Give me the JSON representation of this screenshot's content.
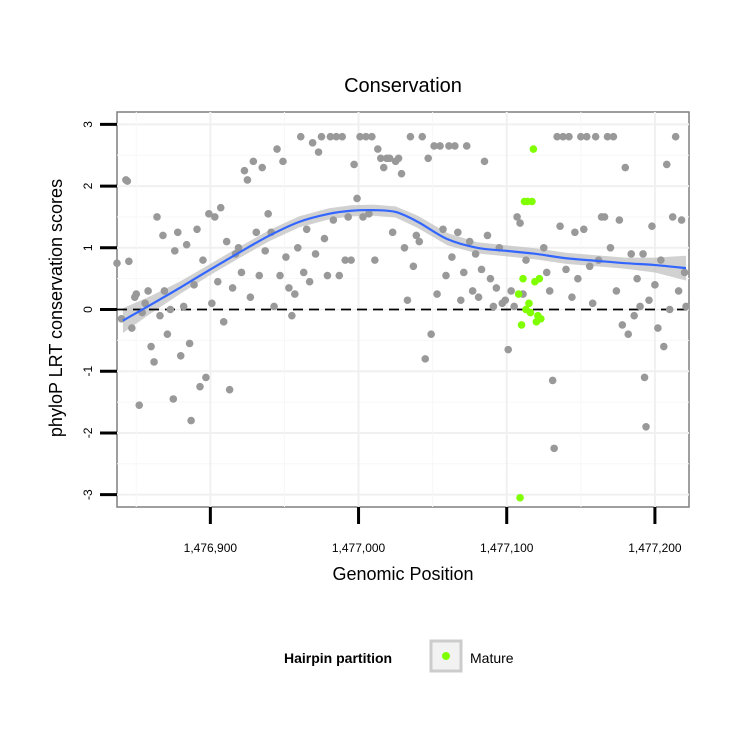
{
  "chart_data": {
    "type": "scatter",
    "title": "Conservation",
    "xlabel": "Genomic Position",
    "ylabel": "phyloP LRT conservation scores",
    "xlim": [
      1476837,
      1477223
    ],
    "ylim": [
      -3.2,
      3.2
    ],
    "x_ticks": [
      1476900,
      1477000,
      1477100,
      1477200
    ],
    "x_tick_labels": [
      "1,476,900",
      "1,477,000",
      "1,477,100",
      "1,477,200"
    ],
    "y_ticks": [
      -3,
      -2,
      -1,
      0,
      1,
      2,
      3
    ],
    "y_tick_labels": [
      "-3",
      "-2",
      "-1",
      "0",
      "1",
      "2",
      "3"
    ],
    "reference_line": {
      "y": 0,
      "style": "dashed"
    },
    "grid": true,
    "legend": {
      "title": "Hairpin partition",
      "placement": "bottom",
      "entries": [
        "Mature"
      ]
    },
    "colors": {
      "other": "#999999",
      "mature": "#7FFF00",
      "smooth": "#3366FF",
      "band": "#BEBEBE"
    },
    "series": [
      {
        "values": [
          [
            1476837,
            0.75
          ],
          [
            1476840,
            -0.15
          ],
          [
            1476843,
            2.1
          ],
          [
            1476844,
            2.08
          ],
          [
            1476845,
            0.78
          ],
          [
            1476847,
            -0.3
          ],
          [
            1476849,
            0.2
          ],
          [
            1476850,
            0.25
          ],
          [
            1476852,
            -1.55
          ],
          [
            1476854,
            -0.05
          ],
          [
            1476856,
            0.1
          ],
          [
            1476858,
            0.3
          ],
          [
            1476860,
            -0.6
          ],
          [
            1476862,
            -0.85
          ],
          [
            1476864,
            1.5
          ],
          [
            1476866,
            -0.1
          ],
          [
            1476868,
            1.2
          ],
          [
            1476869,
            0.3
          ],
          [
            1476871,
            -0.4
          ],
          [
            1476873,
            0.0
          ],
          [
            1476875,
            -1.45
          ],
          [
            1476876,
            0.95
          ],
          [
            1476878,
            1.25
          ],
          [
            1476880,
            -0.75
          ],
          [
            1476882,
            0.05
          ],
          [
            1476884,
            1.05
          ],
          [
            1476886,
            -0.55
          ],
          [
            1476887,
            -1.8
          ],
          [
            1476889,
            0.4
          ],
          [
            1476891,
            1.3
          ],
          [
            1476893,
            -1.25
          ],
          [
            1476895,
            0.8
          ],
          [
            1476897,
            -1.1
          ],
          [
            1476899,
            1.55
          ],
          [
            1476901,
            0.1
          ],
          [
            1476903,
            1.5
          ],
          [
            1476905,
            0.45
          ],
          [
            1476907,
            1.65
          ],
          [
            1476909,
            -0.2
          ],
          [
            1476911,
            1.1
          ],
          [
            1476913,
            -1.3
          ],
          [
            1476915,
            0.35
          ],
          [
            1476917,
            0.9
          ],
          [
            1476919,
            1.0
          ],
          [
            1476921,
            0.6
          ],
          [
            1476923,
            2.25
          ],
          [
            1476925,
            2.1
          ],
          [
            1476927,
            0.2
          ],
          [
            1476929,
            2.4
          ],
          [
            1476931,
            1.25
          ],
          [
            1476933,
            0.55
          ],
          [
            1476935,
            2.3
          ],
          [
            1476937,
            0.95
          ],
          [
            1476939,
            1.55
          ],
          [
            1476941,
            1.25
          ],
          [
            1476943,
            0.05
          ],
          [
            1476945,
            2.6
          ],
          [
            1476947,
            0.55
          ],
          [
            1476949,
            2.4
          ],
          [
            1476951,
            0.85
          ],
          [
            1476953,
            0.35
          ],
          [
            1476955,
            -0.1
          ],
          [
            1476957,
            0.25
          ],
          [
            1476959,
            1.0
          ],
          [
            1476961,
            2.8
          ],
          [
            1476963,
            0.6
          ],
          [
            1476965,
            1.3
          ],
          [
            1476967,
            0.45
          ],
          [
            1476969,
            2.7
          ],
          [
            1476971,
            0.9
          ],
          [
            1476973,
            2.55
          ],
          [
            1476975,
            2.8
          ],
          [
            1476977,
            1.15
          ],
          [
            1476979,
            0.55
          ],
          [
            1476981,
            2.8
          ],
          [
            1476983,
            1.45
          ],
          [
            1476985,
            2.8
          ],
          [
            1476987,
            0.55
          ],
          [
            1476989,
            2.8
          ],
          [
            1476991,
            0.8
          ],
          [
            1476993,
            1.5
          ],
          [
            1476995,
            0.8
          ],
          [
            1476997,
            2.35
          ],
          [
            1476999,
            1.8
          ],
          [
            1477001,
            2.8
          ],
          [
            1477003,
            1.5
          ],
          [
            1477005,
            2.8
          ],
          [
            1477007,
            1.55
          ],
          [
            1477009,
            2.8
          ],
          [
            1477011,
            0.8
          ],
          [
            1477013,
            2.6
          ],
          [
            1477015,
            2.45
          ],
          [
            1477017,
            2.3
          ],
          [
            1477019,
            2.45
          ],
          [
            1477021,
            2.45
          ],
          [
            1477023,
            1.25
          ],
          [
            1477025,
            2.4
          ],
          [
            1477027,
            2.45
          ],
          [
            1477029,
            2.2
          ],
          [
            1477031,
            1.0
          ],
          [
            1477033,
            0.15
          ],
          [
            1477035,
            2.8
          ],
          [
            1477037,
            0.7
          ],
          [
            1477039,
            1.2
          ],
          [
            1477041,
            1.1
          ],
          [
            1477043,
            2.8
          ],
          [
            1477045,
            -0.8
          ],
          [
            1477047,
            2.45
          ],
          [
            1477049,
            -0.4
          ],
          [
            1477051,
            2.65
          ],
          [
            1477053,
            0.25
          ],
          [
            1477055,
            2.65
          ],
          [
            1477057,
            1.3
          ],
          [
            1477059,
            0.55
          ],
          [
            1477061,
            2.65
          ],
          [
            1477063,
            0.85
          ],
          [
            1477065,
            2.65
          ],
          [
            1477067,
            1.25
          ],
          [
            1477069,
            0.15
          ],
          [
            1477071,
            0.6
          ],
          [
            1477073,
            2.65
          ],
          [
            1477075,
            1.1
          ],
          [
            1477077,
            0.3
          ],
          [
            1477079,
            0.9
          ],
          [
            1477081,
            0.2
          ],
          [
            1477083,
            0.65
          ],
          [
            1477085,
            2.4
          ],
          [
            1477087,
            1.2
          ],
          [
            1477089,
            0.5
          ],
          [
            1477091,
            0.05
          ],
          [
            1477093,
            0.35
          ],
          [
            1477095,
            1.0
          ],
          [
            1477097,
            0.1
          ],
          [
            1477099,
            0.15
          ],
          [
            1477101,
            -0.65
          ],
          [
            1477103,
            0.3
          ],
          [
            1477105,
            0.05
          ],
          [
            1477107,
            1.5
          ],
          [
            1477109,
            1.4
          ],
          [
            1477111,
            0.25
          ],
          [
            1477113,
            0.8
          ],
          [
            1477125,
            1.0
          ],
          [
            1477127,
            0.6
          ],
          [
            1477129,
            0.3
          ],
          [
            1477131,
            -1.15
          ],
          [
            1477132,
            -2.25
          ],
          [
            1477134,
            2.8
          ],
          [
            1477136,
            1.35
          ],
          [
            1477138,
            2.8
          ],
          [
            1477140,
            0.65
          ],
          [
            1477142,
            2.8
          ],
          [
            1477144,
            0.2
          ],
          [
            1477146,
            1.25
          ],
          [
            1477148,
            0.5
          ],
          [
            1477150,
            2.8
          ],
          [
            1477152,
            1.3
          ],
          [
            1477154,
            2.8
          ],
          [
            1477156,
            0.7
          ],
          [
            1477158,
            0.1
          ],
          [
            1477160,
            2.8
          ],
          [
            1477162,
            0.8
          ],
          [
            1477164,
            1.5
          ],
          [
            1477166,
            1.5
          ],
          [
            1477168,
            2.8
          ],
          [
            1477170,
            1.0
          ],
          [
            1477172,
            2.8
          ],
          [
            1477174,
            0.3
          ],
          [
            1477176,
            1.45
          ],
          [
            1477178,
            -0.25
          ],
          [
            1477180,
            2.3
          ],
          [
            1477182,
            -0.4
          ],
          [
            1477184,
            0.9
          ],
          [
            1477186,
            -0.1
          ],
          [
            1477188,
            0.5
          ],
          [
            1477190,
            0.05
          ],
          [
            1477192,
            0.9
          ],
          [
            1477193,
            -1.1
          ],
          [
            1477194,
            -1.9
          ],
          [
            1477196,
            0.15
          ],
          [
            1477198,
            1.35
          ],
          [
            1477200,
            0.4
          ],
          [
            1477202,
            -0.3
          ],
          [
            1477204,
            0.8
          ],
          [
            1477206,
            -0.6
          ],
          [
            1477208,
            2.35
          ],
          [
            1477210,
            0.0
          ],
          [
            1477212,
            1.5
          ],
          [
            1477214,
            2.8
          ],
          [
            1477216,
            0.3
          ],
          [
            1477218,
            1.45
          ],
          [
            1477220,
            0.6
          ],
          [
            1477221,
            0.05
          ]
        ]
      },
      {
        "name": "Mature",
        "values": [
          [
            1477108,
            0.25
          ],
          [
            1477109,
            -3.05
          ],
          [
            1477110,
            -0.25
          ],
          [
            1477111,
            0.5
          ],
          [
            1477112,
            1.75
          ],
          [
            1477113,
            0.0
          ],
          [
            1477114,
            1.75
          ],
          [
            1477115,
            0.1
          ],
          [
            1477116,
            -0.05
          ],
          [
            1477117,
            1.75
          ],
          [
            1477118,
            2.6
          ],
          [
            1477119,
            0.45
          ],
          [
            1477120,
            -0.2
          ],
          [
            1477121,
            -0.1
          ],
          [
            1477122,
            0.5
          ],
          [
            1477123,
            -0.15
          ]
        ]
      }
    ],
    "smooth": {
      "x": [
        1476841,
        1476860,
        1476880,
        1476900,
        1476920,
        1476940,
        1476960,
        1476980,
        1476995,
        1477010,
        1477025,
        1477040,
        1477060,
        1477080,
        1477100,
        1477120,
        1477140,
        1477160,
        1477180,
        1477200,
        1477221
      ],
      "y": [
        -0.18,
        0.08,
        0.36,
        0.65,
        0.93,
        1.2,
        1.42,
        1.55,
        1.6,
        1.61,
        1.58,
        1.42,
        1.14,
        1.0,
        0.95,
        0.9,
        0.83,
        0.79,
        0.75,
        0.72,
        0.67
      ],
      "se": [
        0.2,
        0.14,
        0.1,
        0.09,
        0.09,
        0.09,
        0.09,
        0.09,
        0.09,
        0.09,
        0.09,
        0.1,
        0.1,
        0.09,
        0.09,
        0.09,
        0.09,
        0.09,
        0.09,
        0.12,
        0.2
      ]
    }
  }
}
